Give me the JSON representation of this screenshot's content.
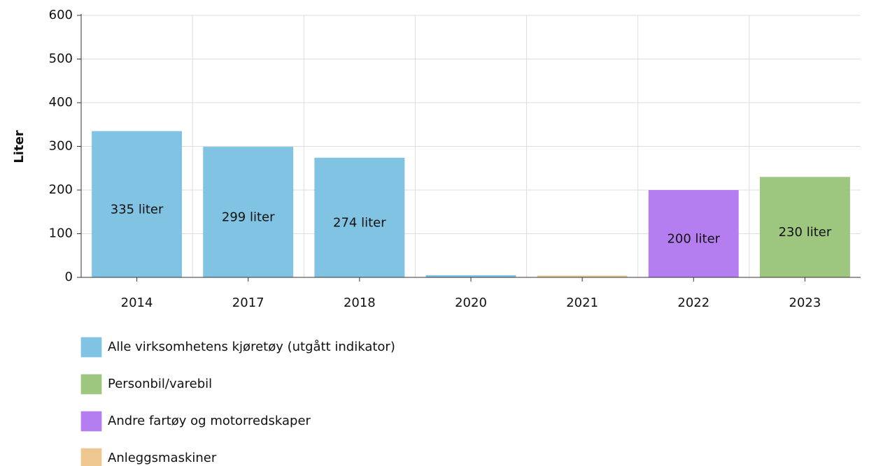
{
  "chart_data": {
    "type": "bar",
    "y_label": "Liter",
    "categories": [
      "2014",
      "2017",
      "2018",
      "2020",
      "2021",
      "2022",
      "2023"
    ],
    "series": [
      {
        "name": "Alle virksomhetens kjøretøy (utgått indikator)",
        "color": "#80c3e2",
        "values": [
          335,
          299,
          274,
          5,
          null,
          null,
          null
        ],
        "value_labels": [
          "335 liter",
          "299 liter",
          "274 liter",
          null,
          null,
          null,
          null
        ]
      },
      {
        "name": "Personbil/varebil",
        "color": "#9dc67e",
        "values": [
          null,
          null,
          null,
          null,
          null,
          null,
          230
        ],
        "value_labels": [
          null,
          null,
          null,
          null,
          null,
          null,
          "230 liter"
        ]
      },
      {
        "name": "Andre fartøy og motorredskaper",
        "color": "#b57ef0",
        "values": [
          null,
          null,
          null,
          null,
          null,
          200,
          null
        ],
        "value_labels": [
          null,
          null,
          null,
          null,
          null,
          "200 liter",
          null
        ]
      },
      {
        "name": "Anleggsmaskiner",
        "color": "#eec690",
        "values": [
          null,
          null,
          null,
          null,
          4,
          null,
          null
        ],
        "value_labels": [
          null,
          null,
          null,
          null,
          null,
          null,
          null
        ]
      }
    ],
    "ylim": [
      0,
      600
    ],
    "yticks": [
      0,
      100,
      200,
      300,
      400,
      500,
      600
    ],
    "grid": true
  }
}
